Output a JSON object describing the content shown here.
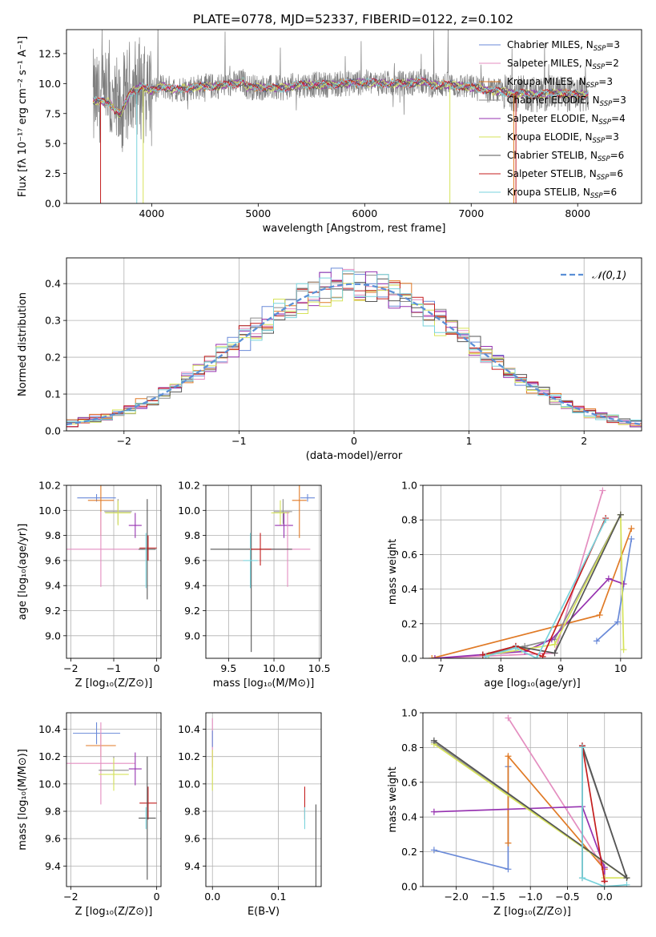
{
  "title": "PLATE=0778, MJD=52337, FIBERID=0122, z=0.102",
  "colors": {
    "Chabrier MILES": "#6a8ad8",
    "Salpeter MILES": "#e48ec0",
    "Kroupa MILES": "#e07a26",
    "Chabrier ELODIE": "#8b8b8b",
    "Salpeter ELODIE": "#9632b0",
    "Kroupa ELODIE": "#d6e35a",
    "Chabrier STELIB": "#555555",
    "Salpeter STELIB": "#c41e1e",
    "Kroupa STELIB": "#79d3dc"
  },
  "legend_spectrum": [
    {
      "model": "Chabrier MILES",
      "nssp": "3"
    },
    {
      "model": "Salpeter MILES",
      "nssp": "2"
    },
    {
      "model": "Kroupa MILES",
      "nssp": "3"
    },
    {
      "model": "Chabrier ELODIE",
      "nssp": "3"
    },
    {
      "model": "Salpeter ELODIE",
      "nssp": "4"
    },
    {
      "model": "Kroupa ELODIE",
      "nssp": "3"
    },
    {
      "model": "Chabrier STELIB",
      "nssp": "6"
    },
    {
      "model": "Salpeter STELIB",
      "nssp": "6"
    },
    {
      "model": "Kroupa STELIB",
      "nssp": "6"
    }
  ],
  "chart_data": [
    {
      "id": "spectrum",
      "type": "line",
      "xlabel": "wavelength [Angstrom, rest frame]",
      "ylabel": "Flux [fλ 10⁻¹⁷ erg cm⁻² s⁻¹ A⁻¹]",
      "xlim": [
        3200,
        8600
      ],
      "ylim": [
        0,
        14.5
      ],
      "xticks": [
        4000,
        5000,
        6000,
        7000,
        8000
      ],
      "yticks": [
        0.0,
        2.5,
        5.0,
        7.5,
        10.0,
        12.5
      ],
      "legend": "top-right",
      "grid": false,
      "continuum": {
        "x": [
          3450,
          3600,
          3700,
          3800,
          3900,
          4000,
          4100,
          4200,
          4400,
          4600,
          4800,
          4860,
          4900,
          5000,
          5200,
          5400,
          5600,
          5800,
          6000,
          6200,
          6400,
          6560,
          6600,
          6800,
          7000,
          7200,
          7400,
          7600,
          7800,
          8000,
          8100
        ],
        "y": [
          8.6,
          8.4,
          7.4,
          9.2,
          9.8,
          9.4,
          9.8,
          9.5,
          9.7,
          9.8,
          10.0,
          10.2,
          9.7,
          9.7,
          9.6,
          9.9,
          9.9,
          10.0,
          10.1,
          10.0,
          10.0,
          10.2,
          9.9,
          9.9,
          9.7,
          9.4,
          9.2,
          9.1,
          9.2,
          9.1,
          9.1
        ]
      },
      "model_drops": [
        {
          "model": "Salpeter STELIB",
          "x": 3520
        },
        {
          "model": "Kroupa STELIB",
          "x": 3860
        },
        {
          "model": "Kroupa ELODIE",
          "x": 3920
        },
        {
          "model": "Kroupa ELODIE",
          "x": 6800
        },
        {
          "model": "Kroupa MILES",
          "x": 7400
        },
        {
          "model": "Salpeter STELIB",
          "x": 7420
        }
      ]
    },
    {
      "id": "residuals",
      "type": "histogram",
      "xlabel": "(data-model)/error",
      "ylabel": "Normed distribution",
      "xlim": [
        -2.5,
        2.5
      ],
      "ylim": [
        0,
        0.47
      ],
      "xticks": [
        -2,
        -1,
        0,
        1,
        2
      ],
      "yticks": [
        0.0,
        0.1,
        0.2,
        0.3,
        0.4
      ],
      "grid": true,
      "legend": "top-right",
      "gaussian_label": "𝒩(0,1)",
      "bin_width": 0.1
    },
    {
      "id": "age_vs_Z",
      "type": "scatter",
      "xlabel": "Z [log₁₀(Z/Z⊙)]",
      "ylabel": "age  [log₁₀(age/yr)]",
      "xlim": [
        -2.1,
        0.1
      ],
      "ylim": [
        8.82,
        10.2
      ],
      "xticks": [
        -2,
        -1,
        0
      ],
      "yticks": [
        9.0,
        9.2,
        9.4,
        9.6,
        9.8,
        10.0,
        10.2
      ],
      "grid": true,
      "points": [
        {
          "model": "Chabrier MILES",
          "x": -1.4,
          "y": 10.1,
          "xerr": 0.45,
          "yerr": 0.03
        },
        {
          "model": "Kroupa MILES",
          "x": -1.3,
          "y": 10.08,
          "xerr": 0.3,
          "yerr": 0.28
        },
        {
          "model": "Chabrier ELODIE",
          "x": -0.9,
          "y": 9.99,
          "xerr": 0.32,
          "yerr": 0.1
        },
        {
          "model": "Kroupa ELODIE",
          "x": -0.9,
          "y": 9.98,
          "xerr": 0.3,
          "yerr": 0.1
        },
        {
          "model": "Salpeter ELODIE",
          "x": -0.5,
          "y": 9.88,
          "xerr": 0.15,
          "yerr": 0.1
        },
        {
          "model": "Salpeter MILES",
          "x": -1.3,
          "y": 9.69,
          "xerr": 1.0,
          "yerr": 0.3
        },
        {
          "model": "Chabrier STELIB",
          "x": -0.22,
          "y": 9.69,
          "xerr": 0.2,
          "yerr": 0.4
        },
        {
          "model": "Salpeter STELIB",
          "x": -0.2,
          "y": 9.7,
          "xerr": 0.2,
          "yerr": 0.1
        },
        {
          "model": "Kroupa STELIB",
          "x": -0.25,
          "y": 9.6,
          "xerr": 0.0,
          "yerr": 0.22
        }
      ]
    },
    {
      "id": "age_vs_mass",
      "type": "scatter",
      "xlabel": "mass [log₁₀(M/M⊙)]",
      "ylabel": "",
      "xlim": [
        9.25,
        10.52
      ],
      "ylim": [
        8.82,
        10.2
      ],
      "xticks": [
        9.5,
        10.0,
        10.5
      ],
      "yticks": [
        9.0,
        9.2,
        9.4,
        9.6,
        9.8,
        10.0,
        10.2
      ],
      "grid": true,
      "points": [
        {
          "model": "Chabrier MILES",
          "x": 10.37,
          "y": 10.1,
          "xerr": 0.08,
          "yerr": 0.03
        },
        {
          "model": "Kroupa MILES",
          "x": 10.28,
          "y": 10.08,
          "xerr": 0.08,
          "yerr": 0.3
        },
        {
          "model": "Chabrier ELODIE",
          "x": 10.1,
          "y": 9.99,
          "xerr": 0.1,
          "yerr": 0.1
        },
        {
          "model": "Kroupa ELODIE",
          "x": 10.07,
          "y": 9.98,
          "xerr": 0.1,
          "yerr": 0.1
        },
        {
          "model": "Salpeter ELODIE",
          "x": 10.11,
          "y": 9.88,
          "xerr": 0.1,
          "yerr": 0.1
        },
        {
          "model": "Salpeter MILES",
          "x": 10.15,
          "y": 9.69,
          "xerr": 0.25,
          "yerr": 0.3
        },
        {
          "model": "Chabrier STELIB",
          "x": 9.75,
          "y": 9.69,
          "xerr": 0.45,
          "yerr": 0.82
        },
        {
          "model": "Salpeter STELIB",
          "x": 9.85,
          "y": 9.69,
          "xerr": 0.12,
          "yerr": 0.13
        },
        {
          "model": "Kroupa STELIB",
          "x": 9.74,
          "y": 9.6,
          "xerr": 0.08,
          "yerr": 0.22
        }
      ]
    },
    {
      "id": "weight_vs_age",
      "type": "line",
      "xlabel": "age  [log₁₀(age/yr)]",
      "ylabel": "mass weight",
      "xlim": [
        6.7,
        10.35
      ],
      "ylim": [
        0,
        1.0
      ],
      "xticks": [
        7,
        8,
        9,
        10
      ],
      "yticks": [
        0.0,
        0.2,
        0.4,
        0.6,
        0.8,
        1.0
      ],
      "grid": true,
      "series": [
        {
          "model": "Chabrier MILES",
          "x": [
            9.6,
            9.95,
            10.18
          ],
          "y": [
            0.1,
            0.21,
            0.69
          ]
        },
        {
          "model": "Salpeter MILES",
          "x": [
            6.9,
            8.9,
            9.7
          ],
          "y": [
            0.0,
            0.03,
            0.97
          ]
        },
        {
          "model": "Kroupa MILES",
          "x": [
            6.85,
            9.65,
            10.18
          ],
          "y": [
            0.0,
            0.25,
            0.75
          ]
        },
        {
          "model": "Chabrier ELODIE",
          "x": [
            7.7,
            8.4,
            8.9,
            10.0
          ],
          "y": [
            0.02,
            0.07,
            0.11,
            0.83
          ]
        },
        {
          "model": "Salpeter ELODIE",
          "x": [
            6.9,
            8.4,
            8.85,
            9.8,
            10.05
          ],
          "y": [
            0.0,
            0.04,
            0.11,
            0.46,
            0.43
          ]
        },
        {
          "model": "Kroupa ELODIE",
          "x": [
            7.8,
            8.35,
            8.9,
            10.0,
            10.05
          ],
          "y": [
            0.02,
            0.05,
            0.08,
            0.83,
            0.05
          ]
        },
        {
          "model": "Chabrier STELIB",
          "x": [
            7.7,
            8.25,
            8.9,
            10.0
          ],
          "y": [
            0.02,
            0.07,
            0.03,
            0.83
          ]
        },
        {
          "model": "Salpeter STELIB",
          "x": [
            7.7,
            8.25,
            8.7,
            9.75
          ],
          "y": [
            0.02,
            0.07,
            0.01,
            0.81
          ]
        },
        {
          "model": "Kroupa STELIB",
          "x": [
            7.75,
            8.25,
            8.6,
            9.75
          ],
          "y": [
            0.01,
            0.06,
            0.0,
            0.8
          ]
        }
      ]
    },
    {
      "id": "mass_vs_Z",
      "type": "scatter",
      "xlabel": "Z [log₁₀(Z/Z⊙)]",
      "ylabel": "mass [log₁₀(M/M⊙)]",
      "xlim": [
        -2.1,
        0.1
      ],
      "ylim": [
        9.25,
        10.52
      ],
      "xticks": [
        -2,
        0
      ],
      "yticks": [
        9.4,
        9.6,
        9.8,
        10.0,
        10.2,
        10.4
      ],
      "grid": true,
      "points": [
        {
          "model": "Chabrier MILES",
          "x": -1.4,
          "y": 10.37,
          "xerr": 0.55,
          "yerr": 0.08
        },
        {
          "model": "Kroupa MILES",
          "x": -1.3,
          "y": 10.28,
          "xerr": 0.35,
          "yerr": 0.08
        },
        {
          "model": "Salpeter MILES",
          "x": -1.3,
          "y": 10.15,
          "xerr": 0.8,
          "yerr": 0.3
        },
        {
          "model": "Chabrier ELODIE",
          "x": -1.0,
          "y": 10.1,
          "xerr": 0.35,
          "yerr": 0.1
        },
        {
          "model": "Kroupa ELODIE",
          "x": -1.0,
          "y": 10.07,
          "xerr": 0.35,
          "yerr": 0.12
        },
        {
          "model": "Salpeter ELODIE",
          "x": -0.5,
          "y": 10.11,
          "xerr": 0.15,
          "yerr": 0.12
        },
        {
          "model": "Salpeter STELIB",
          "x": -0.2,
          "y": 9.86,
          "xerr": 0.2,
          "yerr": 0.12
        },
        {
          "model": "Chabrier STELIB",
          "x": -0.22,
          "y": 9.75,
          "xerr": 0.2,
          "yerr": 0.45
        },
        {
          "model": "Kroupa STELIB",
          "x": -0.25,
          "y": 9.75,
          "xerr": 0.0,
          "yerr": 0.08
        }
      ]
    },
    {
      "id": "mass_vs_ebv",
      "type": "scatter",
      "xlabel": "E(B-V)",
      "ylabel": "",
      "xlim": [
        -0.01,
        0.165
      ],
      "ylim": [
        9.25,
        10.52
      ],
      "xticks": [
        0.0,
        0.1
      ],
      "yticks": [
        9.4,
        9.6,
        9.8,
        10.0,
        10.2,
        10.4
      ],
      "grid": true,
      "points": [
        {
          "model": "Salpeter MILES",
          "x": 0.0,
          "y": 10.3,
          "xerr": 0.0,
          "yerr": 0.18
        },
        {
          "model": "Kroupa ELODIE",
          "x": 0.0,
          "y": 10.1,
          "xerr": 0.0,
          "yerr": 0.15
        },
        {
          "model": "Chabrier MILES",
          "x": 0.0,
          "y": 10.33,
          "xerr": 0.0,
          "yerr": 0.06
        },
        {
          "model": "Salpeter STELIB",
          "x": 0.14,
          "y": 9.86,
          "xerr": 0.0,
          "yerr": 0.12
        },
        {
          "model": "Kroupa STELIB",
          "x": 0.14,
          "y": 9.75,
          "xerr": 0.0,
          "yerr": 0.08
        },
        {
          "model": "Chabrier STELIB",
          "x": 0.157,
          "y": 9.55,
          "xerr": 0.0,
          "yerr": 0.3
        }
      ]
    },
    {
      "id": "weight_vs_Z",
      "type": "line",
      "xlabel": "Z [log₁₀(Z/Z⊙)]",
      "ylabel": "mass weight",
      "xlim": [
        -2.45,
        0.5
      ],
      "ylim": [
        0,
        1.0
      ],
      "xticks": [
        -2.0,
        -1.5,
        -1.0,
        -0.5,
        0.0
      ],
      "yticks": [
        0.0,
        0.2,
        0.4,
        0.6,
        0.8,
        1.0
      ],
      "grid": true,
      "series": [
        {
          "model": "Chabrier MILES",
          "x": [
            -2.3,
            -1.3,
            -1.3
          ],
          "y": [
            0.21,
            0.1,
            0.69
          ]
        },
        {
          "model": "Salpeter MILES",
          "x": [
            -1.3,
            0.0,
            0.0
          ],
          "y": [
            0.97,
            0.1,
            0.03
          ]
        },
        {
          "model": "Kroupa MILES",
          "x": [
            -1.3,
            -1.3,
            0.0,
            0.0
          ],
          "y": [
            0.25,
            0.75,
            0.1,
            0.03
          ]
        },
        {
          "model": "Chabrier ELODIE",
          "x": [
            -2.3,
            0.3,
            -0.3
          ],
          "y": [
            0.83,
            0.05,
            0.8
          ]
        },
        {
          "model": "Salpeter ELODIE",
          "x": [
            -2.3,
            -0.3,
            0.0,
            0.0
          ],
          "y": [
            0.43,
            0.46,
            0.11,
            0.03
          ]
        },
        {
          "model": "Kroupa ELODIE",
          "x": [
            -2.3,
            0.3,
            0.0
          ],
          "y": [
            0.82,
            0.05,
            0.05
          ]
        },
        {
          "model": "Chabrier STELIB",
          "x": [
            -2.3,
            0.3,
            -0.3,
            -0.3
          ],
          "y": [
            0.84,
            0.05,
            0.81,
            0.05
          ]
        },
        {
          "model": "Salpeter STELIB",
          "x": [
            -0.3,
            0.0,
            0.0
          ],
          "y": [
            0.81,
            0.03,
            0.0
          ]
        },
        {
          "model": "Kroupa STELIB",
          "x": [
            -0.3,
            -0.3,
            0.0,
            0.3
          ],
          "y": [
            0.8,
            0.05,
            0.0,
            0.01
          ]
        }
      ]
    }
  ]
}
